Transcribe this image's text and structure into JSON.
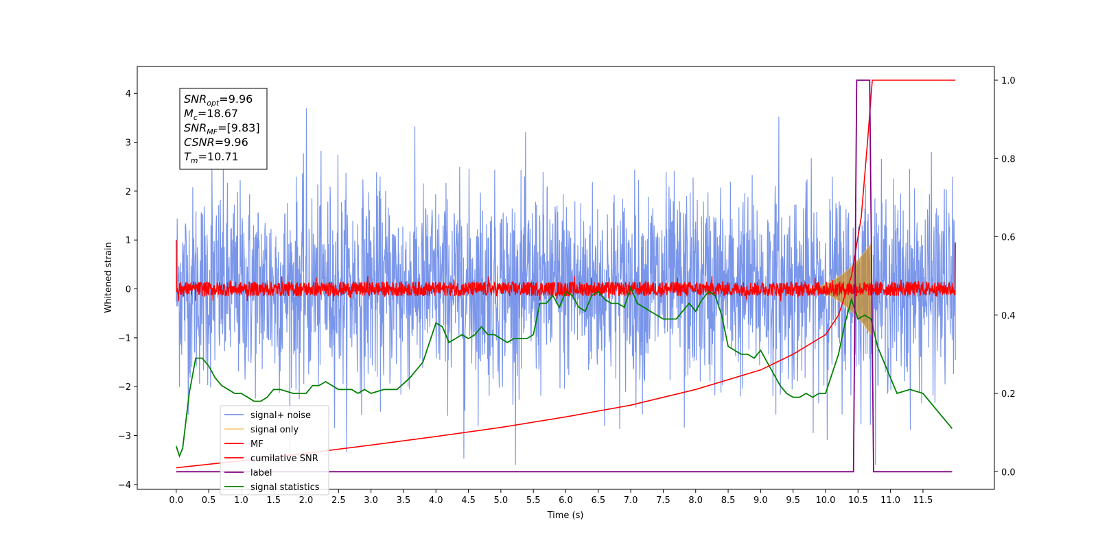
{
  "chart_data": {
    "type": "line",
    "xlabel": "Time (s)",
    "ylabel": "Whitened strain",
    "xlim": [
      -0.6,
      12.6
    ],
    "ylim": [
      -4.1,
      4.55
    ],
    "ylim_right": [
      -0.045,
      1.035
    ],
    "x_ticks": [
      "0.0",
      "0.5",
      "1.0",
      "1.5",
      "2.0",
      "2.5",
      "3.0",
      "3.5",
      "4.0",
      "4.5",
      "5.0",
      "5.5",
      "6.0",
      "6.5",
      "7.0",
      "7.5",
      "8.0",
      "8.5",
      "9.0",
      "9.5",
      "10.0",
      "10.5",
      "11.0",
      "11.5"
    ],
    "y_ticks_left": [
      "4",
      "3",
      "2",
      "1",
      "0",
      "−1",
      "−2",
      "−3",
      "−4"
    ],
    "y_ticks_right": [
      "1.0",
      "0.8",
      "0.6",
      "0.4",
      "0.2",
      "0.0"
    ],
    "annotation_lines": [
      {
        "sym": "SNR",
        "sub": "opt",
        "val": "=9.96"
      },
      {
        "sym": "M",
        "sub": "c",
        "val": "=18.67"
      },
      {
        "sym": "SNR",
        "sub": "MF",
        "val": "=[9.83]"
      },
      {
        "sym": "CSNR",
        "sub": "",
        "val": "=9.96"
      },
      {
        "sym": "T",
        "sub": "m",
        "val": "=10.71"
      }
    ],
    "series": [
      {
        "name": "signal+ noise",
        "color": "#4169e1",
        "axis": "left",
        "description_mean": 0.0,
        "description_std": 1.0,
        "x_range": [
          0.0,
          12.0
        ]
      },
      {
        "name": "signal only",
        "color": "#f5c266",
        "axis": "left",
        "peak_time": 10.71,
        "peak_amplitude": 0.95
      },
      {
        "name": "MF",
        "color": "#ff0000",
        "axis": "left",
        "band": [
          -0.15,
          0.15
        ],
        "x_range": [
          0.0,
          12.0
        ]
      },
      {
        "name": "cumilative SNR",
        "color": "#ff0000",
        "axis": "right",
        "points": [
          [
            0.0,
            0.01
          ],
          [
            1.0,
            0.028
          ],
          [
            2.0,
            0.047
          ],
          [
            3.0,
            0.068
          ],
          [
            4.0,
            0.09
          ],
          [
            5.0,
            0.113
          ],
          [
            6.0,
            0.14
          ],
          [
            7.0,
            0.17
          ],
          [
            8.0,
            0.21
          ],
          [
            9.0,
            0.26
          ],
          [
            9.5,
            0.3
          ],
          [
            10.0,
            0.35
          ],
          [
            10.2,
            0.4
          ],
          [
            10.4,
            0.5
          ],
          [
            10.55,
            0.65
          ],
          [
            10.65,
            0.85
          ],
          [
            10.72,
            1.0
          ],
          [
            12.0,
            1.0
          ]
        ]
      },
      {
        "name": "label",
        "color": "#800080",
        "axis": "right",
        "points": [
          [
            0.0,
            0.0
          ],
          [
            10.43,
            0.0
          ],
          [
            10.48,
            1.0
          ],
          [
            10.68,
            1.0
          ],
          [
            10.74,
            0.0
          ],
          [
            11.95,
            0.0
          ]
        ]
      },
      {
        "name": "signal statistics",
        "color": "#008000",
        "axis": "right",
        "points": [
          [
            0.0,
            0.065
          ],
          [
            0.05,
            0.04
          ],
          [
            0.1,
            0.06
          ],
          [
            0.2,
            0.2
          ],
          [
            0.3,
            0.29
          ],
          [
            0.4,
            0.29
          ],
          [
            0.5,
            0.27
          ],
          [
            0.6,
            0.24
          ],
          [
            0.7,
            0.22
          ],
          [
            0.8,
            0.21
          ],
          [
            0.9,
            0.2
          ],
          [
            1.0,
            0.2
          ],
          [
            1.1,
            0.19
          ],
          [
            1.2,
            0.18
          ],
          [
            1.3,
            0.18
          ],
          [
            1.4,
            0.19
          ],
          [
            1.5,
            0.21
          ],
          [
            1.6,
            0.21
          ],
          [
            1.8,
            0.2
          ],
          [
            2.0,
            0.2
          ],
          [
            2.1,
            0.22
          ],
          [
            2.2,
            0.22
          ],
          [
            2.3,
            0.23
          ],
          [
            2.4,
            0.22
          ],
          [
            2.5,
            0.21
          ],
          [
            2.7,
            0.21
          ],
          [
            2.8,
            0.2
          ],
          [
            2.9,
            0.21
          ],
          [
            3.0,
            0.2
          ],
          [
            3.2,
            0.21
          ],
          [
            3.4,
            0.21
          ],
          [
            3.6,
            0.24
          ],
          [
            3.7,
            0.26
          ],
          [
            3.8,
            0.28
          ],
          [
            3.9,
            0.33
          ],
          [
            4.0,
            0.38
          ],
          [
            4.1,
            0.37
          ],
          [
            4.2,
            0.33
          ],
          [
            4.3,
            0.34
          ],
          [
            4.4,
            0.35
          ],
          [
            4.5,
            0.34
          ],
          [
            4.6,
            0.35
          ],
          [
            4.7,
            0.37
          ],
          [
            4.8,
            0.35
          ],
          [
            4.9,
            0.35
          ],
          [
            5.0,
            0.34
          ],
          [
            5.1,
            0.33
          ],
          [
            5.2,
            0.34
          ],
          [
            5.4,
            0.34
          ],
          [
            5.5,
            0.35
          ],
          [
            5.6,
            0.43
          ],
          [
            5.7,
            0.43
          ],
          [
            5.8,
            0.45
          ],
          [
            5.9,
            0.42
          ],
          [
            6.0,
            0.46
          ],
          [
            6.1,
            0.45
          ],
          [
            6.2,
            0.42
          ],
          [
            6.3,
            0.41
          ],
          [
            6.4,
            0.45
          ],
          [
            6.5,
            0.46
          ],
          [
            6.6,
            0.44
          ],
          [
            6.7,
            0.43
          ],
          [
            6.8,
            0.43
          ],
          [
            6.9,
            0.42
          ],
          [
            7.0,
            0.47
          ],
          [
            7.1,
            0.43
          ],
          [
            7.3,
            0.41
          ],
          [
            7.5,
            0.39
          ],
          [
            7.6,
            0.39
          ],
          [
            7.7,
            0.39
          ],
          [
            7.8,
            0.41
          ],
          [
            7.9,
            0.43
          ],
          [
            8.0,
            0.41
          ],
          [
            8.1,
            0.44
          ],
          [
            8.2,
            0.46
          ],
          [
            8.3,
            0.45
          ],
          [
            8.4,
            0.4
          ],
          [
            8.5,
            0.32
          ],
          [
            8.6,
            0.31
          ],
          [
            8.7,
            0.3
          ],
          [
            8.8,
            0.3
          ],
          [
            8.9,
            0.29
          ],
          [
            9.0,
            0.31
          ],
          [
            9.1,
            0.28
          ],
          [
            9.2,
            0.25
          ],
          [
            9.3,
            0.22
          ],
          [
            9.4,
            0.2
          ],
          [
            9.5,
            0.19
          ],
          [
            9.6,
            0.19
          ],
          [
            9.7,
            0.2
          ],
          [
            9.8,
            0.19
          ],
          [
            9.9,
            0.2
          ],
          [
            10.0,
            0.2
          ],
          [
            10.1,
            0.25
          ],
          [
            10.2,
            0.3
          ],
          [
            10.3,
            0.38
          ],
          [
            10.4,
            0.44
          ],
          [
            10.5,
            0.39
          ],
          [
            10.6,
            0.4
          ],
          [
            10.7,
            0.39
          ],
          [
            10.8,
            0.32
          ],
          [
            10.9,
            0.28
          ],
          [
            11.0,
            0.24
          ],
          [
            11.1,
            0.2
          ],
          [
            11.3,
            0.21
          ],
          [
            11.5,
            0.2
          ],
          [
            11.6,
            0.18
          ],
          [
            11.7,
            0.16
          ],
          [
            11.8,
            0.14
          ],
          [
            11.9,
            0.12
          ],
          [
            11.95,
            0.11
          ]
        ]
      }
    ],
    "legend_position": "lower-left",
    "grid": false
  }
}
